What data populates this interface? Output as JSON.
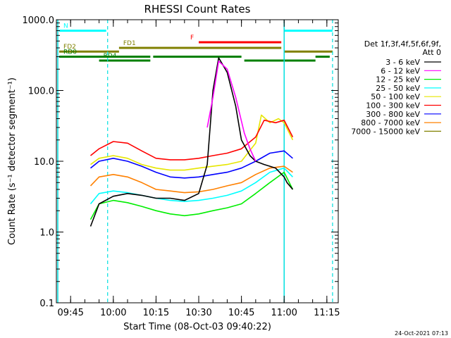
{
  "chart_data": {
    "type": "line",
    "title": "RHESSI Count Rates",
    "xlabel": "Start Time (08-Oct-03 09:40:22)",
    "ylabel": "Count Rate (s⁻¹ detector segment⁻¹)",
    "yscale": "log",
    "ylim": [
      0.1,
      1000
    ],
    "xlim": [
      "09:40",
      "11:19"
    ],
    "ytick_labels": [
      "0.1",
      "1.0",
      "10.0",
      "100.0",
      "1000.0"
    ],
    "xtick_labels": [
      "09:45",
      "10:00",
      "10:15",
      "10:30",
      "10:45",
      "11:00",
      "11:15"
    ],
    "grid": false,
    "legend_position": "right",
    "legend_header": [
      "Det 1f,3f,4f,5f,6f,9f,",
      "Att 0"
    ],
    "series": [
      {
        "name": "3 - 6 keV",
        "color": "#000000",
        "x": [
          "09:52",
          "09:55",
          "10:00",
          "10:05",
          "10:10",
          "10:15",
          "10:20",
          "10:25",
          "10:30",
          "10:33",
          "10:35",
          "10:37",
          "10:40",
          "10:43",
          "10:45",
          "10:48",
          "10:50",
          "10:53",
          "10:55",
          "10:57",
          "11:00",
          "11:01",
          "11:03"
        ],
        "y": [
          1.2,
          2.5,
          3.2,
          3.5,
          3.3,
          3.0,
          3.0,
          2.8,
          3.5,
          9,
          100,
          290,
          180,
          60,
          20,
          12,
          10,
          9,
          8.5,
          8,
          6,
          5,
          4
        ]
      },
      {
        "name": "6 - 12 keV",
        "color": "#ff00ff",
        "x": [
          "10:33",
          "10:35",
          "10:37",
          "10:40",
          "10:43",
          "10:46",
          "10:48",
          "10:50"
        ],
        "y": [
          30,
          80,
          260,
          200,
          80,
          25,
          15,
          10
        ]
      },
      {
        "name": "12 - 25 keV",
        "color": "#00ee00",
        "x": [
          "09:52",
          "09:55",
          "10:00",
          "10:05",
          "10:10",
          "10:15",
          "10:20",
          "10:25",
          "10:30",
          "10:35",
          "10:40",
          "10:45",
          "10:50",
          "10:55",
          "11:00",
          "11:03"
        ],
        "y": [
          1.5,
          2.5,
          2.8,
          2.6,
          2.3,
          2.0,
          1.8,
          1.7,
          1.8,
          2.0,
          2.2,
          2.5,
          3.5,
          5,
          7,
          4
        ]
      },
      {
        "name": "25 - 50 keV",
        "color": "#00ffff",
        "x": [
          "09:52",
          "09:55",
          "10:00",
          "10:05",
          "10:10",
          "10:15",
          "10:20",
          "10:25",
          "10:30",
          "10:35",
          "10:40",
          "10:45",
          "10:50",
          "10:55",
          "11:00",
          "11:03"
        ],
        "y": [
          2.5,
          3.5,
          3.8,
          3.6,
          3.3,
          3.0,
          2.8,
          2.7,
          2.8,
          3.0,
          3.3,
          3.8,
          5,
          7,
          8,
          6
        ]
      },
      {
        "name": "50 - 100 keV",
        "color": "#e6e600",
        "x": [
          "09:52",
          "09:55",
          "10:00",
          "10:05",
          "10:10",
          "10:15",
          "10:20",
          "10:25",
          "10:30",
          "10:35",
          "10:40",
          "10:45",
          "10:50",
          "10:52",
          "10:55",
          "10:58",
          "11:00",
          "11:03"
        ],
        "y": [
          9,
          11,
          12,
          11,
          9,
          8,
          7.5,
          7.5,
          8,
          8.5,
          9,
          10,
          18,
          45,
          35,
          40,
          35,
          20
        ]
      },
      {
        "name": "100 - 300 keV",
        "color": "#ff0000",
        "x": [
          "09:52",
          "09:55",
          "10:00",
          "10:05",
          "10:10",
          "10:15",
          "10:20",
          "10:25",
          "10:30",
          "10:35",
          "10:40",
          "10:45",
          "10:50",
          "10:53",
          "10:57",
          "11:00",
          "11:03"
        ],
        "y": [
          12,
          15,
          19,
          18,
          14,
          11,
          10.5,
          10.5,
          11,
          12,
          13,
          15,
          22,
          38,
          35,
          38,
          22
        ]
      },
      {
        "name": "300 - 800 keV",
        "color": "#0000ff",
        "x": [
          "09:52",
          "09:55",
          "10:00",
          "10:05",
          "10:10",
          "10:15",
          "10:20",
          "10:25",
          "10:30",
          "10:35",
          "10:40",
          "10:45",
          "10:50",
          "10:55",
          "11:00",
          "11:03"
        ],
        "y": [
          8,
          10,
          11,
          10,
          8.5,
          7,
          6,
          5.8,
          6,
          6.5,
          7,
          8,
          10,
          13,
          14,
          11
        ]
      },
      {
        "name": "800 - 7000 keV",
        "color": "#ff8000",
        "x": [
          "09:52",
          "09:55",
          "10:00",
          "10:05",
          "10:10",
          "10:15",
          "10:20",
          "10:25",
          "10:30",
          "10:35",
          "10:40",
          "10:45",
          "10:50",
          "10:55",
          "11:00",
          "11:03"
        ],
        "y": [
          4.5,
          6,
          6.5,
          6,
          5,
          4,
          3.8,
          3.6,
          3.7,
          4,
          4.5,
          5,
          6.5,
          8,
          8.5,
          7
        ]
      },
      {
        "name": "7000 - 15000 keV",
        "color": "#808000",
        "x": [],
        "y": []
      }
    ],
    "annotations": {
      "vlines_solid": [
        "09:40:30",
        "11:00:00"
      ],
      "vlines_dashed": [
        "09:58:00",
        "11:17:00"
      ],
      "vline_color": "#00e0e0",
      "bars": [
        {
          "label": "N",
          "color": "#00ffff",
          "y": 700,
          "segments": [
            [
              "09:41",
              "09:57:30"
            ],
            [
              "11:00",
              "11:17"
            ]
          ]
        },
        {
          "label": "F",
          "color": "#ff0000",
          "y": 480,
          "segments": [
            [
              "10:30",
              "10:59"
            ]
          ]
        },
        {
          "label": "FD1",
          "color": "#808000",
          "y": 400,
          "segments": [
            [
              "10:02",
              "10:59"
            ]
          ]
        },
        {
          "label": "FD2",
          "color": "#808000",
          "y": 355,
          "segments": [
            [
              "09:41",
              "10:02"
            ],
            [
              "11:00",
              "11:17"
            ]
          ]
        },
        {
          "label": "RD0",
          "color": "#008000",
          "y": 300,
          "segments": [
            [
              "09:41",
              "10:13"
            ],
            [
              "10:14",
              "10:45"
            ],
            [
              "11:11",
              "11:16"
            ]
          ]
        },
        {
          "label": "RD4",
          "color": "#008000",
          "y": 265,
          "segments": [
            [
              "09:55",
              "10:13"
            ],
            [
              "10:46",
              "11:11"
            ]
          ]
        }
      ]
    }
  },
  "timestamp": "24-Oct-2021 07:13"
}
